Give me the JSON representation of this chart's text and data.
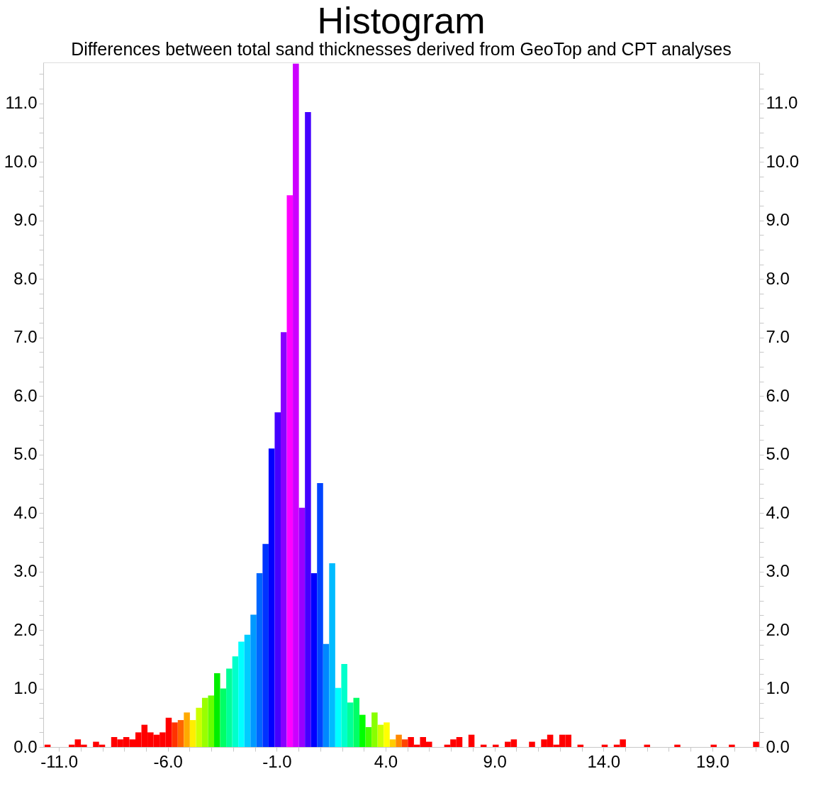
{
  "chart_data": {
    "type": "histogram",
    "title": "Histogram",
    "subtitle": "Differences between total sand thicknesses derived from GeoTop and CPT analyses",
    "bins": [
      -11.66,
      -11.382,
      -11.104,
      -10.826,
      -10.548,
      -10.27,
      -9.992,
      -9.714,
      -9.436,
      -9.158,
      -8.88,
      -8.602,
      -8.324,
      -8.046,
      -7.768,
      -7.49,
      -7.212,
      -6.934,
      -6.656,
      -6.378,
      -6.1,
      -5.822,
      -5.544,
      -5.266,
      -4.988,
      -4.71,
      -4.432,
      -4.154,
      -3.876,
      -3.598,
      -3.32,
      -3.042,
      -2.764,
      -2.486,
      -2.208,
      -1.93,
      -1.652,
      -1.374,
      -1.096,
      -0.818,
      -0.54,
      -0.262,
      0.016,
      0.294,
      0.572,
      0.85,
      1.128,
      1.406,
      1.684,
      1.962,
      2.24,
      2.518,
      2.796,
      3.074,
      3.352,
      3.63,
      3.908,
      4.186,
      4.464,
      4.742,
      5.02,
      5.298,
      5.576,
      5.854,
      6.132,
      6.41,
      6.688,
      6.966,
      7.244,
      7.522,
      7.8,
      8.078,
      8.356,
      8.634,
      8.912,
      9.19,
      9.468,
      9.746,
      10.024,
      10.302,
      10.58,
      10.858,
      11.136,
      11.414,
      11.692,
      11.97,
      12.248,
      12.526,
      12.804,
      13.082,
      13.36,
      13.638,
      13.916,
      14.194,
      14.472,
      14.75,
      15.028,
      15.306,
      15.584,
      15.862,
      16.14,
      16.418,
      16.696,
      16.974,
      17.252,
      17.53,
      17.808,
      18.086,
      18.364,
      18.642,
      18.92,
      19.198,
      19.476,
      19.754,
      20.032,
      20.31,
      20.588,
      20.866,
      21.144
    ],
    "values": [
      0.04,
      0,
      0,
      0,
      0.04,
      0.13,
      0.04,
      0,
      0.09,
      0.04,
      0,
      0.17,
      0.13,
      0.17,
      0.13,
      0.25,
      0.38,
      0.25,
      0.21,
      0.25,
      0.5,
      0.42,
      0.46,
      0.59,
      0.46,
      0.67,
      0.84,
      0.88,
      1.26,
      1.0,
      1.34,
      1.55,
      1.8,
      1.92,
      2.26,
      2.97,
      3.47,
      5.1,
      5.72,
      7.09,
      9.43,
      11.68,
      4.09,
      10.85,
      2.97,
      4.51,
      1.76,
      3.14,
      1.01,
      1.42,
      0.76,
      0.84,
      0.55,
      0.34,
      0.59,
      0.38,
      0.42,
      0.13,
      0.21,
      0.13,
      0.17,
      0.04,
      0.17,
      0.09,
      0,
      0,
      0.04,
      0.13,
      0.17,
      0,
      0.21,
      0,
      0.04,
      0,
      0.04,
      0,
      0.09,
      0.13,
      0,
      0,
      0.09,
      0,
      0.13,
      0.21,
      0.04,
      0.21,
      0.21,
      0,
      0.04,
      0,
      0,
      0,
      0.04,
      0,
      0.04,
      0.13,
      0,
      0,
      0,
      0.04,
      0,
      0,
      0,
      0,
      0.04,
      0,
      0,
      0,
      0,
      0,
      0.04,
      0,
      0,
      0.04,
      0,
      0,
      0,
      0.09
    ],
    "colors": [
      "#ff0000",
      "#ff0000",
      "#ff0000",
      "#ff0000",
      "#ff0000",
      "#ff0000",
      "#ff0000",
      "#ff0000",
      "#ff0000",
      "#ff0000",
      "#ff0000",
      "#ff0000",
      "#ff0000",
      "#ff0000",
      "#ff0000",
      "#ff0000",
      "#ff0000",
      "#ff0000",
      "#ff0000",
      "#ff0000",
      "#ff0000",
      "#ff3300",
      "#ff6600",
      "#ffaa00",
      "#ffee00",
      "#ccff00",
      "#99ff00",
      "#66ff00",
      "#00ee00",
      "#00ff66",
      "#00ff99",
      "#00ffcc",
      "#00ffff",
      "#00ccff",
      "#0099ff",
      "#0066ff",
      "#0033ff",
      "#0000ff",
      "#4400ff",
      "#8800ff",
      "#ff00ff",
      "#cc00ff",
      "#9900ff",
      "#4400ff",
      "#0000ff",
      "#0044ff",
      "#0088ff",
      "#00bbff",
      "#00ffff",
      "#00ffcc",
      "#00ff99",
      "#00ff66",
      "#00ff00",
      "#44ff00",
      "#88ff00",
      "#ccff00",
      "#ffff00",
      "#ffcc00",
      "#ff8800",
      "#ff4400",
      "#ff0000",
      "#ff0000",
      "#ff0000",
      "#ff0000",
      "#ff0000",
      "#ff0000",
      "#ff0000",
      "#ff0000",
      "#ff0000",
      "#ff0000",
      "#ff0000",
      "#ff0000",
      "#ff0000",
      "#ff0000",
      "#ff0000",
      "#ff0000",
      "#ff0000",
      "#ff0000",
      "#ff0000",
      "#ff0000",
      "#ff0000",
      "#ff0000",
      "#ff0000",
      "#ff0000",
      "#ff0000",
      "#ff0000",
      "#ff0000",
      "#ff0000",
      "#ff0000",
      "#ff0000",
      "#ff0000",
      "#ff0000",
      "#ff0000",
      "#ff0000",
      "#ff0000",
      "#ff0000",
      "#ff0000",
      "#ff0000",
      "#ff0000",
      "#ff0000",
      "#ff0000",
      "#ff0000",
      "#ff0000",
      "#ff0000",
      "#ff0000",
      "#ff0000",
      "#ff0000",
      "#ff0000",
      "#ff0000",
      "#ff0000",
      "#ff0000",
      "#ff0000",
      "#ff0000",
      "#ff0000",
      "#ff0000",
      "#ff0000",
      "#ff0000",
      "#ff0000"
    ],
    "xlim": [
      -11.72,
      21.15
    ],
    "xticks": [
      {
        "value": -11,
        "label": "-11.0"
      },
      {
        "value": -10,
        "label": null
      },
      {
        "value": -9,
        "label": null
      },
      {
        "value": -8,
        "label": null
      },
      {
        "value": -7,
        "label": null
      },
      {
        "value": -6,
        "label": "-6.0"
      },
      {
        "value": -5,
        "label": null
      },
      {
        "value": -4,
        "label": null
      },
      {
        "value": -3,
        "label": null
      },
      {
        "value": -2,
        "label": null
      },
      {
        "value": -1,
        "label": "-1.0"
      },
      {
        "value": 0,
        "label": null
      },
      {
        "value": 1,
        "label": null
      },
      {
        "value": 2,
        "label": null
      },
      {
        "value": 3,
        "label": null
      },
      {
        "value": 4,
        "label": "4.0"
      },
      {
        "value": 5,
        "label": null
      },
      {
        "value": 6,
        "label": null
      },
      {
        "value": 7,
        "label": null
      },
      {
        "value": 8,
        "label": null
      },
      {
        "value": 9,
        "label": "9.0"
      },
      {
        "value": 10,
        "label": null
      },
      {
        "value": 11,
        "label": null
      },
      {
        "value": 12,
        "label": null
      },
      {
        "value": 13,
        "label": null
      },
      {
        "value": 14,
        "label": "14.0"
      },
      {
        "value": 15,
        "label": null
      },
      {
        "value": 16,
        "label": null
      },
      {
        "value": 17,
        "label": null
      },
      {
        "value": 18,
        "label": null
      },
      {
        "value": 19,
        "label": "19.0"
      },
      {
        "value": 20,
        "label": null
      },
      {
        "value": 21,
        "label": null
      }
    ],
    "ylim": [
      0,
      11.7
    ],
    "yticks": [
      {
        "value": 0,
        "label": "0.0"
      },
      {
        "value": 0.25,
        "label": null
      },
      {
        "value": 0.5,
        "label": null
      },
      {
        "value": 0.75,
        "label": null
      },
      {
        "value": 1,
        "label": "1.0"
      },
      {
        "value": 1.25,
        "label": null
      },
      {
        "value": 1.5,
        "label": null
      },
      {
        "value": 1.75,
        "label": null
      },
      {
        "value": 2,
        "label": "2.0"
      },
      {
        "value": 2.25,
        "label": null
      },
      {
        "value": 2.5,
        "label": null
      },
      {
        "value": 2.75,
        "label": null
      },
      {
        "value": 3,
        "label": "3.0"
      },
      {
        "value": 3.25,
        "label": null
      },
      {
        "value": 3.5,
        "label": null
      },
      {
        "value": 3.75,
        "label": null
      },
      {
        "value": 4,
        "label": "4.0"
      },
      {
        "value": 4.25,
        "label": null
      },
      {
        "value": 4.5,
        "label": null
      },
      {
        "value": 4.75,
        "label": null
      },
      {
        "value": 5,
        "label": "5.0"
      },
      {
        "value": 5.25,
        "label": null
      },
      {
        "value": 5.5,
        "label": null
      },
      {
        "value": 5.75,
        "label": null
      },
      {
        "value": 6,
        "label": "6.0"
      },
      {
        "value": 6.25,
        "label": null
      },
      {
        "value": 6.5,
        "label": null
      },
      {
        "value": 6.75,
        "label": null
      },
      {
        "value": 7,
        "label": "7.0"
      },
      {
        "value": 7.25,
        "label": null
      },
      {
        "value": 7.5,
        "label": null
      },
      {
        "value": 7.75,
        "label": null
      },
      {
        "value": 8,
        "label": "8.0"
      },
      {
        "value": 8.25,
        "label": null
      },
      {
        "value": 8.5,
        "label": null
      },
      {
        "value": 8.75,
        "label": null
      },
      {
        "value": 9,
        "label": "9.0"
      },
      {
        "value": 9.25,
        "label": null
      },
      {
        "value": 9.5,
        "label": null
      },
      {
        "value": 9.75,
        "label": null
      },
      {
        "value": 10,
        "label": "10.0"
      },
      {
        "value": 10.25,
        "label": null
      },
      {
        "value": 10.5,
        "label": null
      },
      {
        "value": 10.75,
        "label": null
      },
      {
        "value": 11,
        "label": "11.0"
      },
      {
        "value": 11.25,
        "label": null
      },
      {
        "value": 11.5,
        "label": null
      }
    ],
    "y2lim": [
      0,
      11.7
    ],
    "y2ticks": [
      {
        "value": 0,
        "label": "0.0"
      },
      {
        "value": 0.25,
        "label": null
      },
      {
        "value": 0.5,
        "label": null
      },
      {
        "value": 0.75,
        "label": null
      },
      {
        "value": 1,
        "label": "1.0"
      },
      {
        "value": 1.25,
        "label": null
      },
      {
        "value": 1.5,
        "label": null
      },
      {
        "value": 1.75,
        "label": null
      },
      {
        "value": 2,
        "label": "2.0"
      },
      {
        "value": 2.25,
        "label": null
      },
      {
        "value": 2.5,
        "label": null
      },
      {
        "value": 2.75,
        "label": null
      },
      {
        "value": 3,
        "label": "3.0"
      },
      {
        "value": 3.25,
        "label": null
      },
      {
        "value": 3.5,
        "label": null
      },
      {
        "value": 3.75,
        "label": null
      },
      {
        "value": 4,
        "label": "4.0"
      },
      {
        "value": 4.25,
        "label": null
      },
      {
        "value": 4.5,
        "label": null
      },
      {
        "value": 4.75,
        "label": null
      },
      {
        "value": 5,
        "label": "5.0"
      },
      {
        "value": 5.25,
        "label": null
      },
      {
        "value": 5.5,
        "label": null
      },
      {
        "value": 5.75,
        "label": null
      },
      {
        "value": 6,
        "label": "6.0"
      },
      {
        "value": 6.25,
        "label": null
      },
      {
        "value": 6.5,
        "label": null
      },
      {
        "value": 6.75,
        "label": null
      },
      {
        "value": 7,
        "label": "7.0"
      },
      {
        "value": 7.25,
        "label": null
      },
      {
        "value": 7.5,
        "label": null
      },
      {
        "value": 7.75,
        "label": null
      },
      {
        "value": 8,
        "label": "8.0"
      },
      {
        "value": 8.25,
        "label": null
      },
      {
        "value": 8.5,
        "label": null
      },
      {
        "value": 8.75,
        "label": null
      },
      {
        "value": 9,
        "label": "9.0"
      },
      {
        "value": 9.25,
        "label": null
      },
      {
        "value": 9.5,
        "label": null
      },
      {
        "value": 9.75,
        "label": null
      },
      {
        "value": 10,
        "label": "10.0"
      },
      {
        "value": 10.25,
        "label": null
      },
      {
        "value": 10.5,
        "label": null
      },
      {
        "value": 10.75,
        "label": null
      },
      {
        "value": 11,
        "label": "11.0"
      },
      {
        "value": 11.25,
        "label": null
      },
      {
        "value": 11.5,
        "label": null
      }
    ],
    "grid": false
  }
}
